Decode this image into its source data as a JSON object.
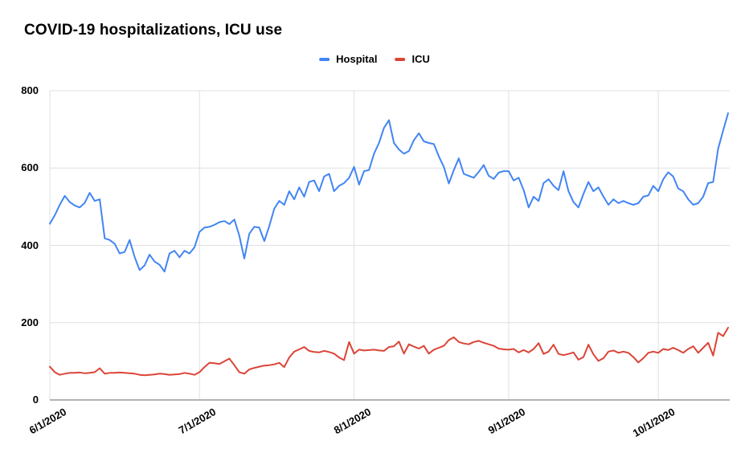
{
  "title": "COVID-19 hospitalizations, ICU use",
  "legend": {
    "position": "top-center",
    "items": [
      {
        "label": "Hospital",
        "color": "#4285f4"
      },
      {
        "label": "ICU",
        "color": "#db4437"
      }
    ]
  },
  "colors": {
    "hospital": "#4285f4",
    "icu": "#db4437",
    "gridline": "#e0e0e0",
    "baseline": "#b3b3b3",
    "axis_text": "#000000",
    "title_text": "#000000",
    "background": "#ffffff"
  },
  "chart_data": {
    "type": "line",
    "title": "COVID-19 hospitalizations, ICU use",
    "grid": {
      "horizontal": true,
      "vertical": "at month ticks"
    },
    "legend_position": "top",
    "x_axis": {
      "unit": "day",
      "start_label": "6/1/2020",
      "tick_labels": [
        "6/1/2020",
        "7/1/2020",
        "8/1/2020",
        "9/1/2020",
        "10/1/2020"
      ],
      "tick_day_index": [
        0,
        30,
        61,
        92,
        122
      ],
      "total_days": 137,
      "label_rotation_deg": -30
    },
    "y_axis": {
      "ticks": [
        0,
        200,
        400,
        600,
        800
      ],
      "range": [
        0,
        800
      ]
    },
    "series": [
      {
        "name": "Hospital",
        "color": "#4285f4",
        "values": [
          456,
          478,
          505,
          528,
          512,
          503,
          498,
          510,
          536,
          515,
          519,
          418,
          414,
          404,
          379,
          383,
          414,
          370,
          336,
          348,
          376,
          358,
          350,
          332,
          379,
          386,
          369,
          386,
          379,
          395,
          435,
          446,
          448,
          453,
          460,
          463,
          455,
          467,
          425,
          366,
          430,
          448,
          446,
          411,
          450,
          495,
          515,
          505,
          540,
          519,
          550,
          526,
          564,
          568,
          540,
          578,
          585,
          540,
          554,
          561,
          575,
          603,
          557,
          592,
          595,
          637,
          665,
          704,
          724,
          665,
          648,
          637,
          644,
          672,
          690,
          669,
          665,
          662,
          630,
          603,
          560,
          595,
          625,
          585,
          580,
          575,
          590,
          608,
          580,
          572,
          588,
          592,
          592,
          568,
          575,
          543,
          498,
          526,
          515,
          561,
          571,
          554,
          543,
          592,
          540,
          512,
          498,
          533,
          564,
          540,
          550,
          526,
          505,
          519,
          509,
          515,
          509,
          505,
          509,
          526,
          529,
          554,
          540,
          571,
          589,
          578,
          547,
          540,
          519,
          505,
          509,
          526,
          561,
          564,
          650,
          697,
          742
        ]
      },
      {
        "name": "ICU",
        "color": "#db4437",
        "values": [
          86,
          72,
          65,
          68,
          70,
          70,
          71,
          69,
          70,
          72,
          82,
          68,
          70,
          70,
          71,
          70,
          69,
          68,
          65,
          64,
          65,
          66,
          68,
          67,
          65,
          66,
          67,
          70,
          68,
          65,
          72,
          85,
          96,
          95,
          93,
          100,
          107,
          90,
          72,
          68,
          79,
          83,
          86,
          89,
          90,
          92,
          96,
          85,
          110,
          125,
          131,
          137,
          127,
          124,
          123,
          127,
          124,
          120,
          110,
          103,
          150,
          120,
          130,
          128,
          129,
          130,
          128,
          127,
          137,
          139,
          151,
          120,
          144,
          138,
          133,
          140,
          120,
          130,
          135,
          140,
          155,
          162,
          150,
          146,
          144,
          150,
          153,
          148,
          144,
          140,
          133,
          131,
          130,
          132,
          123,
          129,
          123,
          132,
          147,
          119,
          125,
          143,
          119,
          116,
          119,
          123,
          104,
          111,
          143,
          118,
          101,
          108,
          125,
          128,
          122,
          125,
          122,
          111,
          97,
          108,
          122,
          125,
          122,
          132,
          129,
          135,
          129,
          122,
          132,
          139,
          122,
          135,
          148,
          115,
          174,
          165,
          187
        ]
      }
    ]
  }
}
